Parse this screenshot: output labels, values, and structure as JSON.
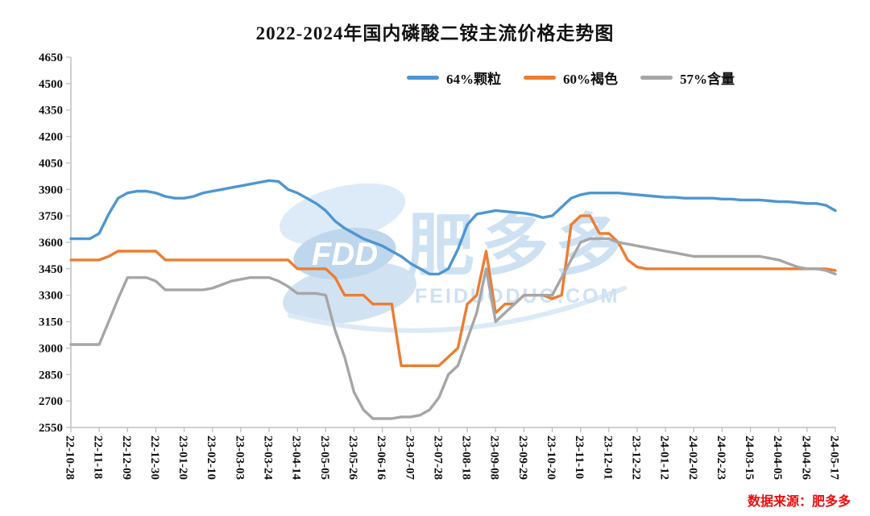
{
  "title": "2022-2024年国内磷酸二铵主流价格走势图",
  "source": "数据来源：肥多多",
  "watermark": {
    "abbr": "FDD",
    "name": "肥多多",
    "site": "FEIDUODUO.COM",
    "color": "#9CC5E8"
  },
  "colors": {
    "blue_series": "#4E96D2",
    "orange_series": "#ED7D31",
    "gray_series": "#A6A6A6",
    "axis": "#BFBFBF",
    "source_text": "#F00A0A"
  },
  "chart_data": {
    "type": "line",
    "title": "2022-2024年国内磷酸二铵主流价格走势图",
    "xlabel": "",
    "ylabel": "",
    "ylim": [
      2550,
      4650
    ],
    "y_tick_step": 150,
    "grid": false,
    "legend_position": "top",
    "axis_color": "#BFBFBF",
    "x_tick_every": 3,
    "x_tick_labels": [
      "22-10-28",
      "22-11-18",
      "22-12-09",
      "22-12-30",
      "23-01-20",
      "23-02-10",
      "23-03-03",
      "23-03-24",
      "23-04-14",
      "23-05-05",
      "23-05-26",
      "23-06-16",
      "23-07-07",
      "23-07-28",
      "23-08-18",
      "23-09-08",
      "23-09-29",
      "23-10-20",
      "23-11-10",
      "23-12-01",
      "23-12-22",
      "24-01-12",
      "24-02-02",
      "24-02-23",
      "24-03-15",
      "24-04-05",
      "24-04-26",
      "24-05-17"
    ],
    "series": [
      {
        "name": "64%颗粒",
        "color": "#4E96D2",
        "values": [
          3620,
          3620,
          3620,
          3650,
          3760,
          3850,
          3880,
          3890,
          3890,
          3880,
          3860,
          3850,
          3850,
          3860,
          3880,
          3890,
          3900,
          3910,
          3920,
          3930,
          3940,
          3950,
          3945,
          3900,
          3880,
          3850,
          3820,
          3780,
          3720,
          3680,
          3650,
          3620,
          3600,
          3580,
          3550,
          3520,
          3480,
          3450,
          3420,
          3420,
          3450,
          3560,
          3700,
          3760,
          3770,
          3780,
          3775,
          3770,
          3765,
          3755,
          3740,
          3750,
          3800,
          3850,
          3870,
          3880,
          3880,
          3880,
          3880,
          3875,
          3870,
          3865,
          3860,
          3855,
          3855,
          3850,
          3850,
          3850,
          3850,
          3845,
          3845,
          3840,
          3840,
          3840,
          3835,
          3830,
          3830,
          3825,
          3820,
          3820,
          3810,
          3780
        ]
      },
      {
        "name": "60%褐色",
        "color": "#ED7D31",
        "values": [
          3500,
          3500,
          3500,
          3500,
          3520,
          3550,
          3550,
          3550,
          3550,
          3550,
          3500,
          3500,
          3500,
          3500,
          3500,
          3500,
          3500,
          3500,
          3500,
          3500,
          3500,
          3500,
          3500,
          3500,
          3450,
          3450,
          3450,
          3450,
          3400,
          3300,
          3300,
          3300,
          3250,
          3250,
          3250,
          2900,
          2900,
          2900,
          2900,
          2900,
          2950,
          3000,
          3250,
          3300,
          3550,
          3200,
          3250,
          3250,
          3300,
          3300,
          3300,
          3280,
          3300,
          3700,
          3750,
          3750,
          3650,
          3650,
          3600,
          3500,
          3460,
          3450,
          3450,
          3450,
          3450,
          3450,
          3450,
          3450,
          3450,
          3450,
          3450,
          3450,
          3450,
          3450,
          3450,
          3450,
          3450,
          3450,
          3450,
          3450,
          3450,
          3440
        ]
      },
      {
        "name": "57%含量",
        "color": "#A6A6A6",
        "values": [
          3020,
          3020,
          3020,
          3020,
          3150,
          3280,
          3400,
          3400,
          3400,
          3380,
          3330,
          3330,
          3330,
          3330,
          3330,
          3340,
          3360,
          3380,
          3390,
          3400,
          3400,
          3400,
          3380,
          3350,
          3310,
          3310,
          3310,
          3300,
          3100,
          2950,
          2750,
          2650,
          2600,
          2600,
          2600,
          2610,
          2610,
          2620,
          2650,
          2720,
          2850,
          2900,
          3050,
          3200,
          3450,
          3150,
          3200,
          3250,
          3300,
          3300,
          3300,
          3300,
          3400,
          3500,
          3600,
          3620,
          3620,
          3620,
          3600,
          3590,
          3580,
          3570,
          3560,
          3550,
          3540,
          3530,
          3520,
          3520,
          3520,
          3520,
          3520,
          3520,
          3520,
          3520,
          3510,
          3500,
          3480,
          3460,
          3450,
          3450,
          3440,
          3420
        ]
      }
    ]
  }
}
